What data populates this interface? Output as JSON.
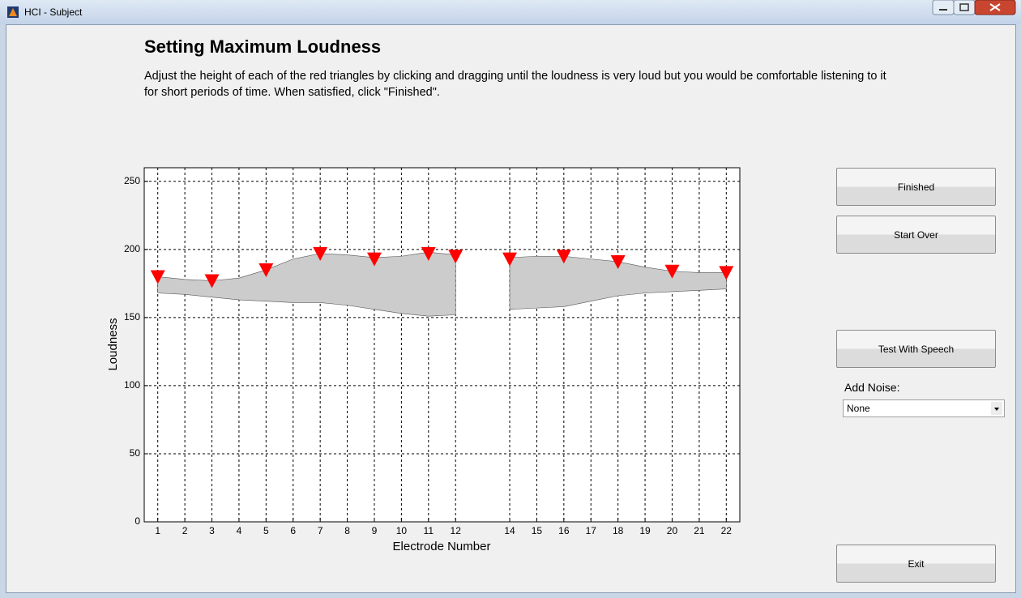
{
  "window": {
    "title": "HCI - Subject"
  },
  "header": {
    "title": "Setting Maximum Loudness",
    "instructions": "Adjust the height of each of the red triangles by clicking and dragging until the loudness is very loud but you would be comfortable listening to it for short periods of time. When satisfied, click \"Finished\"."
  },
  "chart_data": {
    "type": "band",
    "xlabel": "Electrode Number",
    "ylabel": "Loudness",
    "xlim": [
      0.5,
      22.5
    ],
    "ylim": [
      0,
      260
    ],
    "xticks": [
      1,
      2,
      3,
      4,
      5,
      6,
      7,
      8,
      9,
      10,
      11,
      12,
      14,
      15,
      16,
      17,
      18,
      19,
      20,
      21,
      22
    ],
    "yticks": [
      0,
      50,
      100,
      150,
      200,
      250
    ],
    "grid": true,
    "band": {
      "color": "#cccccc",
      "x": [
        1,
        2,
        3,
        4,
        5,
        6,
        7,
        8,
        9,
        10,
        11,
        12,
        13,
        14,
        15,
        16,
        17,
        18,
        19,
        20,
        21,
        22
      ],
      "upper": [
        180,
        178,
        177,
        179,
        185,
        193,
        197,
        196,
        194,
        195,
        198,
        196,
        null,
        194,
        195,
        195,
        193,
        191,
        187,
        184,
        183,
        183
      ],
      "lower": [
        168,
        167,
        165,
        163,
        162,
        161,
        161,
        159,
        156,
        153,
        151,
        152,
        null,
        156,
        157,
        158,
        162,
        166,
        168,
        169,
        170,
        171
      ]
    },
    "markers": {
      "color": "#ff0000",
      "x": [
        1,
        3,
        5,
        7,
        9,
        11,
        12,
        14,
        16,
        18,
        20,
        22
      ],
      "values": [
        180,
        177,
        185,
        197,
        193,
        197,
        195,
        193,
        195,
        191,
        184,
        183
      ]
    }
  },
  "controls": {
    "buttons": [
      "Finished",
      "Start Over",
      "Test With Speech",
      "Exit"
    ],
    "noise_label": "Add Noise:",
    "noise_value": "None"
  }
}
